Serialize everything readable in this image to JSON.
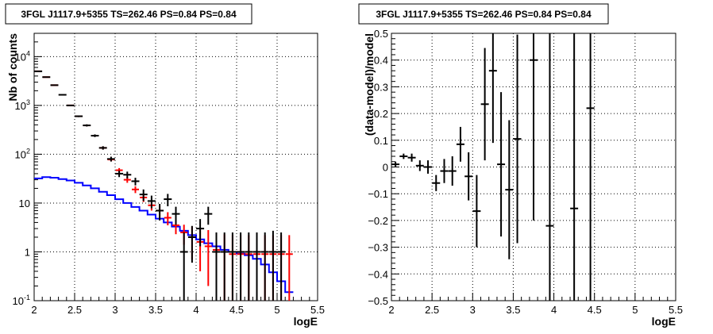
{
  "chart_data": [
    {
      "type": "line",
      "title": "3FGL J1117.9+5355 TS=262.46 PS=0.84 PS=0.84",
      "xlabel": "logE",
      "ylabel": "Nb of counts",
      "xlim": [
        2,
        5.5
      ],
      "ylim": [
        0.1,
        30000
      ],
      "yscale": "log",
      "grid": true,
      "x_ticks": [
        "2",
        "2.5",
        "3",
        "3.5",
        "4",
        "4.5",
        "5",
        "5.5"
      ],
      "y_ticks": [
        {
          "v": 0.1,
          "b": "10",
          "e": "-1"
        },
        {
          "v": 1,
          "b": "1",
          "e": ""
        },
        {
          "v": 10,
          "b": "10",
          "e": ""
        },
        {
          "v": 100,
          "b": "10",
          "e": "2"
        },
        {
          "v": 1000,
          "b": "10",
          "e": "3"
        },
        {
          "v": 10000,
          "b": "10",
          "e": "4"
        }
      ],
      "series": [
        {
          "name": "",
          "color": "#000000",
          "kind": "errorbar",
          "x": [
            2.05,
            2.15,
            2.25,
            2.35,
            2.45,
            2.55,
            2.65,
            2.75,
            2.85,
            2.95,
            3.05,
            3.15,
            3.25,
            3.35,
            3.45,
            3.55,
            3.65,
            3.75,
            3.85,
            3.95,
            4.05,
            4.15,
            4.25,
            4.35,
            4.45,
            4.55,
            4.65,
            4.75,
            4.85,
            4.95,
            5.05,
            5.15
          ],
          "y": [
            5000,
            3800,
            2600,
            1650,
            1000,
            600,
            390,
            240,
            135,
            80,
            40,
            38,
            28,
            15,
            11,
            7,
            12,
            6,
            1,
            2,
            3,
            6,
            1,
            1,
            1,
            1,
            1,
            1,
            1,
            1,
            1,
            0.1
          ],
          "yerr_lo": [
            70,
            60,
            50,
            40,
            30,
            24,
            20,
            15,
            11,
            9,
            6,
            6,
            5,
            4,
            3.2,
            2.6,
            3.4,
            2.4,
            0.9,
            1.4,
            1.7,
            2.4,
            0.9,
            0.9,
            0.9,
            0.9,
            0.9,
            0.9,
            0.9,
            1,
            0.9,
            0.05
          ],
          "yerr_hi": [
            70,
            60,
            50,
            40,
            30,
            24,
            20,
            15,
            11,
            9,
            6,
            6,
            5,
            4,
            3.2,
            2.6,
            3.4,
            2.4,
            1.5,
            1.4,
            1.7,
            2.4,
            1.5,
            1.5,
            1.5,
            1.5,
            1.5,
            1.5,
            1.5,
            1.7,
            1.5,
            0.05
          ],
          "points_drawn": [
            true,
            true,
            true,
            true,
            true,
            true,
            true,
            true,
            true,
            true,
            true,
            true,
            true,
            true,
            true,
            true,
            true,
            true,
            true,
            true,
            true,
            true,
            true,
            true,
            true,
            true,
            true,
            true,
            true,
            true,
            true,
            false
          ]
        },
        {
          "name": "",
          "color": "#ff0000",
          "kind": "errorbar",
          "x": [
            2.05,
            2.15,
            2.25,
            2.35,
            2.45,
            2.55,
            2.65,
            2.75,
            2.85,
            2.95,
            3.05,
            3.15,
            3.25,
            3.35,
            3.45,
            3.55,
            3.65,
            3.75,
            3.85,
            3.95,
            4.05,
            4.15,
            4.25,
            4.35,
            4.45,
            4.55,
            4.65,
            4.75,
            4.85,
            4.95,
            5.05,
            5.15
          ],
          "y": [
            5000,
            3800,
            2600,
            1650,
            1000,
            600,
            390,
            240,
            135,
            78,
            47,
            30,
            19,
            13,
            9,
            7,
            5,
            3.5,
            2.5,
            2,
            1.6,
            1.3,
            1.1,
            1,
            0.9,
            0.9,
            0.9,
            0.9,
            0.9,
            0.9,
            0.9,
            0.9
          ],
          "yerr_lo": [
            60,
            50,
            45,
            35,
            25,
            20,
            16,
            12,
            9,
            7,
            5,
            4,
            3,
            2.5,
            2,
            1.8,
            1.5,
            1.2,
            1.1,
            1.3,
            1.2,
            1.1,
            1,
            0.95,
            0.85,
            0.85,
            0.85,
            0.85,
            0.85,
            0.85,
            0.85,
            0.85
          ],
          "yerr_hi": [
            60,
            50,
            45,
            35,
            25,
            20,
            16,
            12,
            9,
            7,
            5,
            4,
            3,
            2.5,
            2,
            1.8,
            1.5,
            1.2,
            1.1,
            1.3,
            1.4,
            1.5,
            1.3,
            1.3,
            1.3,
            1.3,
            1.3,
            1.3,
            1.3,
            1.3,
            1.3,
            1.3
          ]
        },
        {
          "name": "",
          "color": "#0000ff",
          "kind": "step",
          "x_edges": [
            2.0,
            2.1,
            2.2,
            2.3,
            2.4,
            2.5,
            2.6,
            2.7,
            2.8,
            2.9,
            3.0,
            3.1,
            3.2,
            3.3,
            3.4,
            3.5,
            3.6,
            3.7,
            3.8,
            3.9,
            4.0,
            4.1,
            4.2,
            4.3,
            4.4,
            4.5,
            4.6,
            4.7,
            4.8,
            4.9,
            5.0,
            5.1,
            5.2
          ],
          "y": [
            32,
            34,
            33,
            31,
            29,
            26,
            23,
            20,
            17,
            14.5,
            12,
            10,
            8.3,
            7,
            5.8,
            4.8,
            4,
            3.3,
            2.7,
            2.2,
            1.8,
            1.5,
            1.3,
            1.1,
            1,
            0.92,
            0.85,
            0.72,
            0.55,
            0.38,
            0.25,
            0.15
          ]
        }
      ]
    },
    {
      "type": "scatter",
      "title": "3FGL J1117.9+5355 TS=262.46 PS=0.84 PS=0.84",
      "xlabel": "logE",
      "ylabel": "(data-model)/model",
      "xlim": [
        2,
        5.5
      ],
      "ylim": [
        -0.5,
        0.5
      ],
      "grid": true,
      "x_ticks": [
        "2",
        "2.5",
        "3",
        "3.5",
        "4",
        "4.5",
        "5",
        "5.5"
      ],
      "y_ticks": [
        "-0.5",
        "-0.4",
        "-0.3",
        "-0.2",
        "-0.1",
        "0",
        "0.1",
        "0.2",
        "0.3",
        "0.4",
        "0.5"
      ],
      "series": [
        {
          "name": "",
          "color": "#000000",
          "kind": "errorbar",
          "x": [
            2.05,
            2.15,
            2.25,
            2.35,
            2.45,
            2.55,
            2.65,
            2.75,
            2.85,
            2.95,
            3.05,
            3.15,
            3.25,
            3.35,
            3.45,
            3.55,
            3.75,
            3.95,
            4.25,
            4.45
          ],
          "y": [
            0.01,
            0.04,
            0.035,
            0.005,
            0.0,
            -0.06,
            -0.015,
            -0.015,
            0.085,
            -0.035,
            -0.165,
            0.235,
            0.36,
            0.01,
            -0.085,
            0.105,
            0.4,
            -0.22,
            -0.155,
            0.22
          ],
          "yerr": [
            0.01,
            0.01,
            0.015,
            0.02,
            0.025,
            0.03,
            0.045,
            0.055,
            0.065,
            0.09,
            0.135,
            0.21,
            0.27,
            0.27,
            0.26,
            0.39,
            0.6,
            0.75,
            0.9,
            0.9
          ]
        }
      ]
    }
  ]
}
